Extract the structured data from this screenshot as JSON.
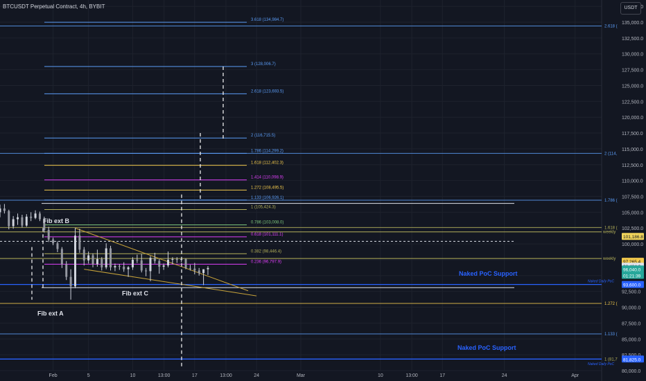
{
  "header": {
    "title": "BTCUSDT Perpetual Contract, 4h, BYBIT",
    "currency": "USDT"
  },
  "colors": {
    "background": "#131722",
    "grid": "#1e222d",
    "axis_text": "#b2b5be",
    "candle_up": "#cfd3dc",
    "candle_down": "#cfd3dc",
    "fib_blue": "#5b9cf6",
    "fib_yellow": "#f2c94c",
    "fib_magenta": "#e040fb",
    "fib_olive": "#b5b15a",
    "fib_green": "#7ec87e",
    "trend_yellow": "#c9a43a",
    "poc_blue": "#2962ff",
    "white_dash": "#ffffff"
  },
  "chart_data": {
    "type": "candlestick",
    "title": "BTCUSDT Perpetual Contract, 4h, BYBIT",
    "timeframe": "4h",
    "exchange": "BYBIT",
    "ylim": [
      80000,
      138500
    ],
    "y_ticks": [
      80000,
      82500,
      85000,
      87500,
      90000,
      92500,
      95000,
      97500,
      100000,
      102500,
      105000,
      107500,
      110000,
      112500,
      115000,
      117500,
      120000,
      122500,
      125000,
      127500,
      130000,
      132500,
      135000,
      137500
    ],
    "x_range": [
      "2025-01-26",
      "2025-04-04"
    ],
    "x_ticks": [
      {
        "label": "Feb",
        "date": "2025-02-01"
      },
      {
        "label": "5",
        "date": "2025-02-05"
      },
      {
        "label": "10",
        "date": "2025-02-10"
      },
      {
        "label": "13:00",
        "date": "2025-02-13 13:00"
      },
      {
        "label": "17",
        "date": "2025-02-17"
      },
      {
        "label": "13:00",
        "date": "2025-02-20 13:00"
      },
      {
        "label": "24",
        "date": "2025-02-24"
      },
      {
        "label": "Mar",
        "date": "2025-03-01"
      },
      {
        "label": "10",
        "date": "2025-03-10"
      },
      {
        "label": "13:00",
        "date": "2025-03-13 13:00"
      },
      {
        "label": "17",
        "date": "2025-03-17"
      },
      {
        "label": "24",
        "date": "2025-03-24"
      },
      {
        "label": "Apr",
        "date": "2025-04-01"
      }
    ],
    "candles": [
      {
        "t": "2025-01-26 00:00",
        "o": 105000,
        "h": 106200,
        "l": 104200,
        "c": 105600
      },
      {
        "t": "2025-01-26 12:00",
        "o": 105600,
        "h": 106300,
        "l": 104800,
        "c": 105200
      },
      {
        "t": "2025-01-27 00:00",
        "o": 105200,
        "h": 105400,
        "l": 102300,
        "c": 102800
      },
      {
        "t": "2025-01-27 12:00",
        "o": 102800,
        "h": 104400,
        "l": 102400,
        "c": 103900
      },
      {
        "t": "2025-01-28 00:00",
        "o": 103900,
        "h": 104800,
        "l": 103000,
        "c": 104200
      },
      {
        "t": "2025-01-28 12:00",
        "o": 104200,
        "h": 104600,
        "l": 102600,
        "c": 102900
      },
      {
        "t": "2025-01-29 00:00",
        "o": 102900,
        "h": 104700,
        "l": 102700,
        "c": 104300
      },
      {
        "t": "2025-01-29 12:00",
        "o": 104300,
        "h": 105000,
        "l": 103600,
        "c": 104100
      },
      {
        "t": "2025-01-30 00:00",
        "o": 104100,
        "h": 105300,
        "l": 103900,
        "c": 104800
      },
      {
        "t": "2025-01-30 12:00",
        "o": 104800,
        "h": 105100,
        "l": 103600,
        "c": 103900
      },
      {
        "t": "2025-01-31 00:00",
        "o": 103900,
        "h": 104300,
        "l": 101800,
        "c": 102200
      },
      {
        "t": "2025-01-31 12:00",
        "o": 102200,
        "h": 102700,
        "l": 100300,
        "c": 100700
      },
      {
        "t": "2025-02-01 00:00",
        "o": 100700,
        "h": 101000,
        "l": 99800,
        "c": 100100
      },
      {
        "t": "2025-02-01 12:00",
        "o": 100100,
        "h": 100400,
        "l": 98700,
        "c": 99200
      },
      {
        "t": "2025-02-02 00:00",
        "o": 99200,
        "h": 99500,
        "l": 96200,
        "c": 96800
      },
      {
        "t": "2025-02-02 12:00",
        "o": 96800,
        "h": 97300,
        "l": 94300,
        "c": 94800
      },
      {
        "t": "2025-02-03 00:00",
        "o": 94800,
        "h": 96000,
        "l": 91200,
        "c": 93300
      },
      {
        "t": "2025-02-03 12:00",
        "o": 93300,
        "h": 102500,
        "l": 93000,
        "c": 101300
      },
      {
        "t": "2025-02-04 00:00",
        "o": 101300,
        "h": 102400,
        "l": 98600,
        "c": 99100
      },
      {
        "t": "2025-02-04 12:00",
        "o": 99100,
        "h": 99500,
        "l": 96600,
        "c": 97400
      },
      {
        "t": "2025-02-05 00:00",
        "o": 97400,
        "h": 98800,
        "l": 96900,
        "c": 98200
      },
      {
        "t": "2025-02-05 12:00",
        "o": 98200,
        "h": 98500,
        "l": 96300,
        "c": 96800
      },
      {
        "t": "2025-02-06 00:00",
        "o": 96800,
        "h": 99100,
        "l": 96400,
        "c": 97600
      },
      {
        "t": "2025-02-06 12:00",
        "o": 97600,
        "h": 97900,
        "l": 95800,
        "c": 96300
      },
      {
        "t": "2025-02-07 00:00",
        "o": 96300,
        "h": 100100,
        "l": 96000,
        "c": 99300
      },
      {
        "t": "2025-02-07 12:00",
        "o": 99300,
        "h": 99700,
        "l": 95800,
        "c": 96300
      },
      {
        "t": "2025-02-08 00:00",
        "o": 96300,
        "h": 96900,
        "l": 95700,
        "c": 96500
      },
      {
        "t": "2025-02-08 12:00",
        "o": 96500,
        "h": 96800,
        "l": 95900,
        "c": 96400
      },
      {
        "t": "2025-02-09 00:00",
        "o": 96400,
        "h": 97100,
        "l": 95600,
        "c": 96000
      },
      {
        "t": "2025-02-09 12:00",
        "o": 96000,
        "h": 96500,
        "l": 94800,
        "c": 96300
      },
      {
        "t": "2025-02-10 00:00",
        "o": 96300,
        "h": 97900,
        "l": 95900,
        "c": 97500
      },
      {
        "t": "2025-02-10 12:00",
        "o": 97500,
        "h": 98300,
        "l": 97000,
        "c": 97400
      },
      {
        "t": "2025-02-11 00:00",
        "o": 97400,
        "h": 98400,
        "l": 95500,
        "c": 95800
      },
      {
        "t": "2025-02-11 12:00",
        "o": 95800,
        "h": 96200,
        "l": 94900,
        "c": 95700
      },
      {
        "t": "2025-02-12 00:00",
        "o": 95700,
        "h": 98100,
        "l": 94100,
        "c": 97800
      },
      {
        "t": "2025-02-12 12:00",
        "o": 97800,
        "h": 98600,
        "l": 96900,
        "c": 97300
      },
      {
        "t": "2025-02-13 00:00",
        "o": 97300,
        "h": 97600,
        "l": 95300,
        "c": 96400
      },
      {
        "t": "2025-02-13 12:00",
        "o": 96400,
        "h": 96900,
        "l": 95900,
        "c": 96600
      },
      {
        "t": "2025-02-14 00:00",
        "o": 96600,
        "h": 98800,
        "l": 96300,
        "c": 97500
      },
      {
        "t": "2025-02-14 12:00",
        "o": 97500,
        "h": 97900,
        "l": 96800,
        "c": 97600
      },
      {
        "t": "2025-02-15 00:00",
        "o": 97600,
        "h": 97900,
        "l": 97000,
        "c": 97500
      },
      {
        "t": "2025-02-15 12:00",
        "o": 97500,
        "h": 97800,
        "l": 97100,
        "c": 97600
      },
      {
        "t": "2025-02-16 00:00",
        "o": 97600,
        "h": 97700,
        "l": 96000,
        "c": 96200
      },
      {
        "t": "2025-02-16 12:00",
        "o": 96200,
        "h": 96700,
        "l": 95800,
        "c": 96100
      },
      {
        "t": "2025-02-17 00:00",
        "o": 96100,
        "h": 97000,
        "l": 95200,
        "c": 95800
      },
      {
        "t": "2025-02-17 12:00",
        "o": 95800,
        "h": 96200,
        "l": 95000,
        "c": 95400
      },
      {
        "t": "2025-02-18 00:00",
        "o": 95400,
        "h": 96000,
        "l": 93500,
        "c": 96000
      },
      {
        "t": "2025-02-18 12:00",
        "o": 96000,
        "h": 96500,
        "l": 95100,
        "c": 96200
      }
    ],
    "fib_extension_1": {
      "levels": [
        {
          "ratio": "3.618",
          "price": 134984.7,
          "label": "3.618 (134,984.7)",
          "color": "fib_blue"
        },
        {
          "ratio": "3",
          "price": 128006.7,
          "label": "3 (128,006.7)",
          "color": "fib_blue"
        },
        {
          "ratio": "2.618",
          "price": 123693.5,
          "label": "2.618 (123,693.5)",
          "color": "fib_blue"
        },
        {
          "ratio": "2",
          "price": 116715.5,
          "label": "2 (116,715.5)",
          "color": "fib_blue"
        },
        {
          "ratio": "1.786",
          "price": 114299.2,
          "label": "1.786 (114,299.2)",
          "color": "fib_blue"
        },
        {
          "ratio": "1.618",
          "price": 112402.3,
          "label": "1.618 (112,402.3)",
          "color": "fib_yellow"
        },
        {
          "ratio": "1.414",
          "price": 110098.9,
          "label": "1.414 (110,098.9)",
          "color": "fib_magenta"
        },
        {
          "ratio": "1.272",
          "price": 108495.5,
          "label": "1.272 (108,495.5)",
          "color": "fib_yellow"
        },
        {
          "ratio": "1.133",
          "price": 106926.1,
          "label": "1.133 (106,926.1)",
          "color": "fib_blue"
        },
        {
          "ratio": "1",
          "price": 105424.3,
          "label": "1 (105,424.3)",
          "color": "fib_olive"
        },
        {
          "ratio": "0.786",
          "price": 103008.0,
          "label": "0.786 (103,008.0)",
          "color": "fib_green"
        },
        {
          "ratio": "0.618",
          "price": 101111.1,
          "label": "0.618 (101,111.1)",
          "color": "fib_magenta"
        },
        {
          "ratio": "0.382",
          "price": 98446.4,
          "label": "0.382 (98,446.4)",
          "color": "fib_olive"
        },
        {
          "ratio": "0.236",
          "price": 96797.9,
          "label": "0.236 (96,797.9)",
          "color": "fib_magenta"
        }
      ]
    },
    "fib_extension_2_right_labels": [
      {
        "label": "2.618 (",
        "price": 134400
      },
      {
        "label": "2 (114,",
        "price": 114300
      },
      {
        "label": "1.786 (",
        "price": 106900
      },
      {
        "label": "1.618 (",
        "price": 102600
      },
      {
        "label": "1.272 (",
        "price": 90600
      },
      {
        "label": "1.133 (",
        "price": 85800
      },
      {
        "label": "1 (81,7",
        "price": 81800
      }
    ],
    "annotations": [
      {
        "text": "Fib ext B",
        "date": "2025-02-04",
        "price": 103600
      },
      {
        "text": "Fib ext C",
        "date": "2025-02-14",
        "price": 92200
      },
      {
        "text": "Fib ext A",
        "date": "2025-02-03",
        "price": 89000
      },
      {
        "text": "Naked PoC Support",
        "price": 95300
      },
      {
        "text": "Naked PoC Support",
        "price": 83600
      },
      {
        "text": "weekly",
        "price": 97700
      },
      {
        "text": "weekly",
        "price": 101900
      },
      {
        "text": "Naked Daily PoC",
        "price": 93600
      },
      {
        "text": "Naked Daily PoC",
        "price": 81100
      }
    ],
    "price_labels": [
      {
        "text": "101,186.8",
        "price": 101186.8,
        "bg": "#f0d45b",
        "fg": "#131722"
      },
      {
        "text": "97,265.4",
        "price": 97265.4,
        "bg": "#f2c94c",
        "fg": "#131722"
      },
      {
        "text": "96,484.0",
        "price": 96484.0,
        "bg": "#e0e3eb",
        "fg": "#131722"
      },
      {
        "text": "96,040.0",
        "price": 96040.0,
        "bg": "#26a69a",
        "fg": "#ffffff"
      },
      {
        "text": "01:21:39",
        "price": 95040.0,
        "bg": "#26a69a",
        "fg": "#ffffff"
      },
      {
        "text": "93,600.0",
        "price": 93600.0,
        "bg": "#2962ff",
        "fg": "#ffffff"
      },
      {
        "text": "81,825.0",
        "price": 81825.0,
        "bg": "#2962ff",
        "fg": "#ffffff"
      }
    ]
  }
}
